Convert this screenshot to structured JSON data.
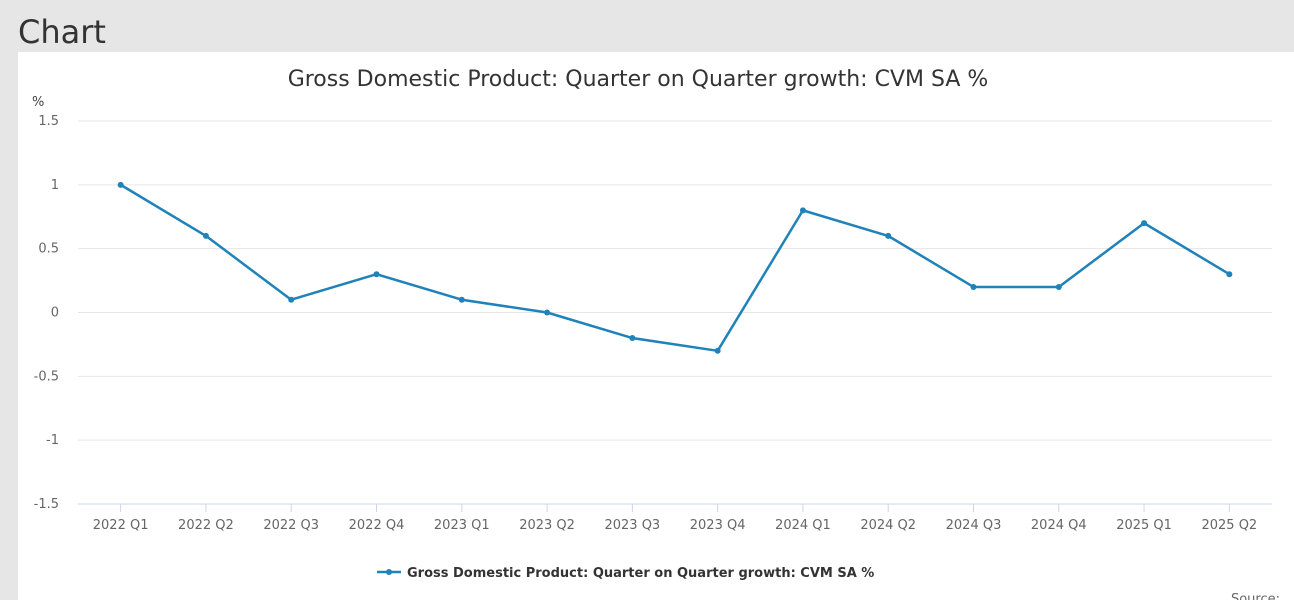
{
  "page": {
    "heading": "Chart"
  },
  "source_label": "Source:",
  "colors": {
    "series": "#1f82b9",
    "grid": "#e6e6e6",
    "axis": "#ccd6eb"
  },
  "chart_data": {
    "type": "line",
    "title": "Gross Domestic Product: Quarter on Quarter growth: CVM SA %",
    "ylabel": "%",
    "xlabel": "",
    "ylim": [
      -1.5,
      1.5
    ],
    "yticks": [
      1.5,
      1,
      0.5,
      0,
      -0.5,
      -1,
      -1.5
    ],
    "ytick_labels": [
      "1.5",
      "1",
      "0.5",
      "0",
      "-0.5",
      "-1",
      "-1.5"
    ],
    "grid": true,
    "legend_position": "bottom-center",
    "categories": [
      "2022 Q1",
      "2022 Q2",
      "2022 Q3",
      "2022 Q4",
      "2023 Q1",
      "2023 Q2",
      "2023 Q3",
      "2023 Q4",
      "2024 Q1",
      "2024 Q2",
      "2024 Q3",
      "2024 Q4",
      "2025 Q1",
      "2025 Q2"
    ],
    "series": [
      {
        "name": "Gross Domestic Product: Quarter on Quarter growth: CVM SA %",
        "values": [
          1.0,
          0.6,
          0.1,
          0.3,
          0.1,
          0.0,
          -0.2,
          -0.3,
          0.8,
          0.6,
          0.2,
          0.2,
          0.7,
          0.3
        ]
      }
    ]
  }
}
